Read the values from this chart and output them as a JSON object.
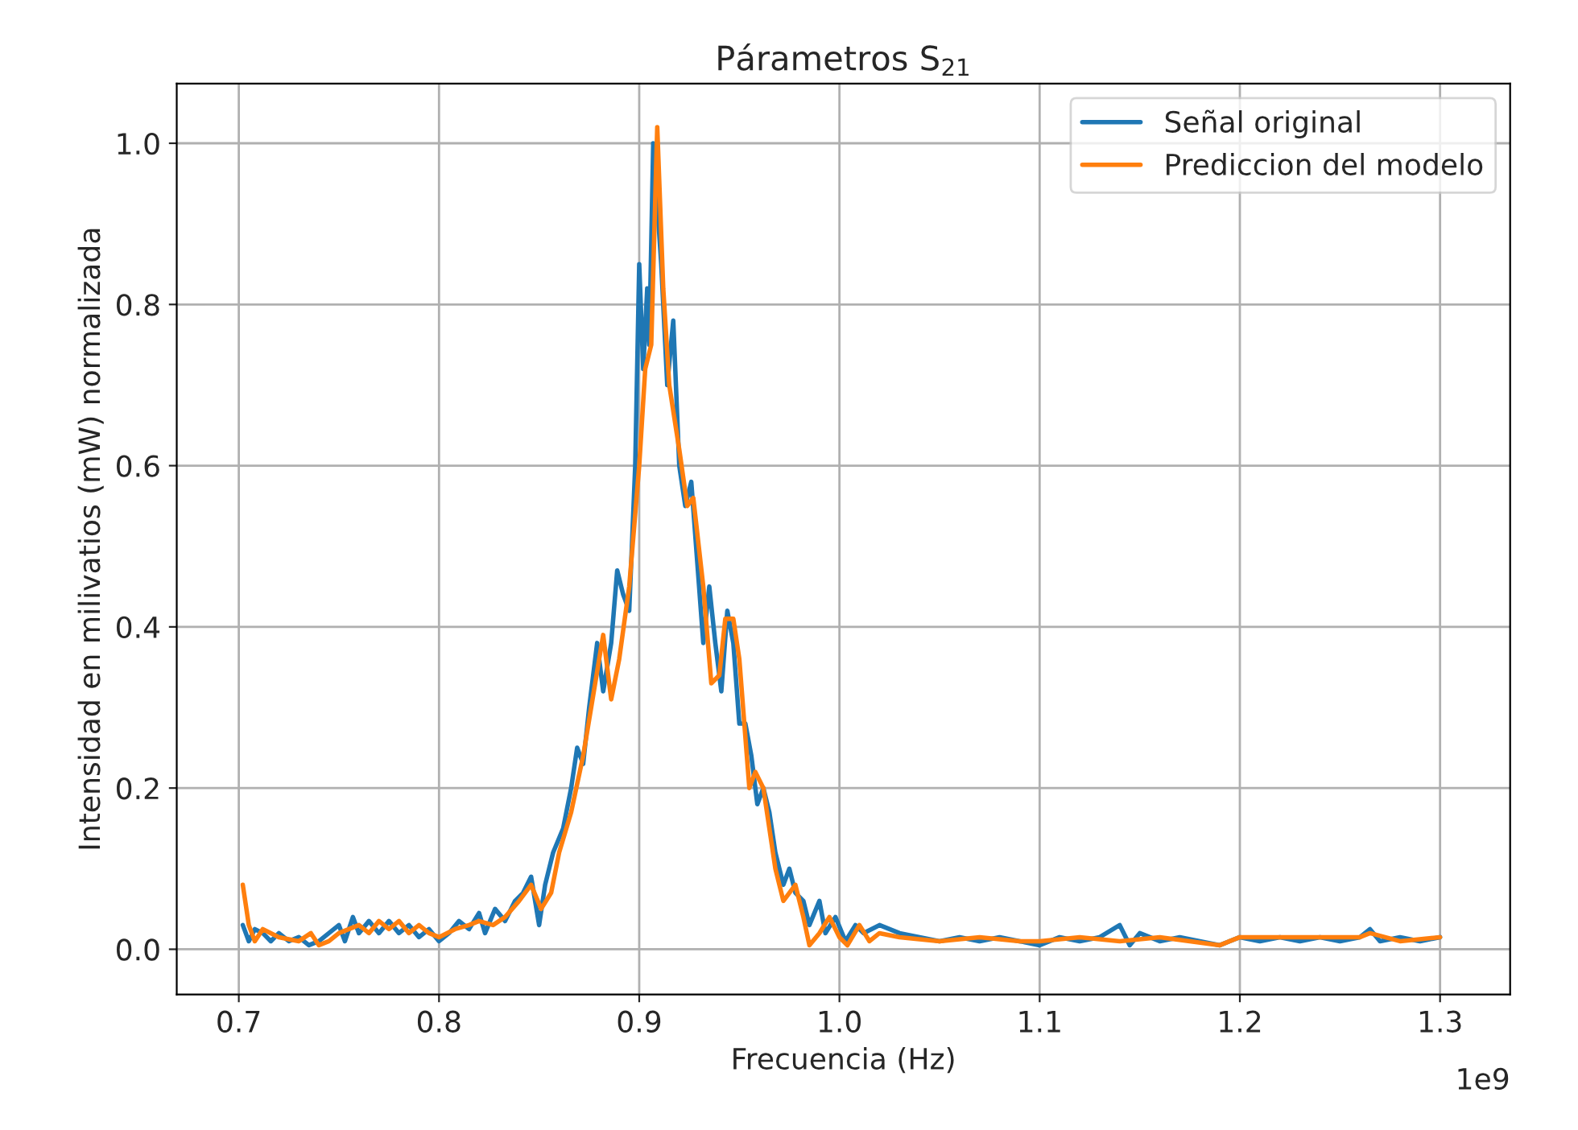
{
  "chart_data": {
    "type": "line",
    "title": "Párametros S$_{21}$",
    "xlabel": "Frecuencia (Hz)",
    "ylabel": "Intensidad en milivatios (mW) normalizada",
    "annotations": [
      "1e9"
    ],
    "xlim": [
      0.669,
      1.335
    ],
    "xticks": [
      0.7,
      0.8,
      0.9,
      {
        "value": 1.0,
        "label": "1.0"
      },
      1.1,
      1.2,
      1.3
    ],
    "ylim": [
      -0.056,
      1.074
    ],
    "yticks": [
      {
        "value": 0.0,
        "label": "0.0"
      },
      0.2,
      0.4,
      0.6,
      0.8,
      {
        "value": 1.0,
        "label": "1.0"
      }
    ],
    "grid": true,
    "legend": "top right",
    "line_style": "solid",
    "marker": "none",
    "series": [
      {
        "name": "Señal original",
        "color": "#1f77b4",
        "x": [
          0.702,
          0.705,
          0.708,
          0.712,
          0.716,
          0.72,
          0.725,
          0.73,
          0.735,
          0.74,
          0.745,
          0.75,
          0.753,
          0.757,
          0.76,
          0.765,
          0.77,
          0.775,
          0.78,
          0.785,
          0.79,
          0.795,
          0.8,
          0.805,
          0.81,
          0.815,
          0.82,
          0.823,
          0.828,
          0.833,
          0.838,
          0.842,
          0.846,
          0.85,
          0.853,
          0.857,
          0.862,
          0.866,
          0.869,
          0.872,
          0.875,
          0.879,
          0.882,
          0.886,
          0.889,
          0.892,
          0.895,
          0.898,
          0.9,
          0.902,
          0.904,
          0.905,
          0.907,
          0.911,
          0.914,
          0.917,
          0.92,
          0.923,
          0.926,
          0.929,
          0.932,
          0.935,
          0.938,
          0.941,
          0.944,
          0.947,
          0.95,
          0.953,
          0.956,
          0.959,
          0.962,
          0.965,
          0.968,
          0.972,
          0.975,
          0.978,
          0.982,
          0.985,
          0.99,
          0.993,
          0.998,
          1.003,
          1.008,
          1.012,
          1.02,
          1.03,
          1.04,
          1.05,
          1.06,
          1.07,
          1.08,
          1.09,
          1.1,
          1.11,
          1.12,
          1.13,
          1.14,
          1.145,
          1.15,
          1.16,
          1.17,
          1.18,
          1.19,
          1.2,
          1.21,
          1.22,
          1.23,
          1.24,
          1.25,
          1.26,
          1.265,
          1.27,
          1.28,
          1.29,
          1.3
        ],
        "values": [
          0.03,
          0.01,
          0.025,
          0.02,
          0.01,
          0.02,
          0.01,
          0.015,
          0.005,
          0.01,
          0.02,
          0.03,
          0.01,
          0.04,
          0.02,
          0.035,
          0.02,
          0.035,
          0.02,
          0.03,
          0.015,
          0.025,
          0.01,
          0.02,
          0.035,
          0.025,
          0.045,
          0.02,
          0.05,
          0.035,
          0.06,
          0.07,
          0.09,
          0.03,
          0.08,
          0.12,
          0.15,
          0.2,
          0.25,
          0.23,
          0.3,
          0.38,
          0.32,
          0.38,
          0.47,
          0.44,
          0.42,
          0.6,
          0.85,
          0.72,
          0.82,
          0.75,
          1.0,
          0.85,
          0.7,
          0.78,
          0.6,
          0.55,
          0.58,
          0.48,
          0.38,
          0.45,
          0.38,
          0.32,
          0.42,
          0.38,
          0.28,
          0.28,
          0.24,
          0.18,
          0.2,
          0.17,
          0.12,
          0.08,
          0.1,
          0.07,
          0.06,
          0.03,
          0.06,
          0.02,
          0.04,
          0.01,
          0.03,
          0.02,
          0.03,
          0.02,
          0.015,
          0.01,
          0.015,
          0.01,
          0.015,
          0.01,
          0.005,
          0.015,
          0.01,
          0.015,
          0.03,
          0.005,
          0.02,
          0.01,
          0.015,
          0.01,
          0.005,
          0.015,
          0.01,
          0.015,
          0.01,
          0.015,
          0.01,
          0.015,
          0.025,
          0.01,
          0.015,
          0.01,
          0.015
        ]
      },
      {
        "name": "Prediccion del modelo",
        "color": "#ff7f0e",
        "x": [
          0.702,
          0.705,
          0.708,
          0.712,
          0.72,
          0.73,
          0.736,
          0.74,
          0.745,
          0.75,
          0.755,
          0.76,
          0.765,
          0.77,
          0.775,
          0.78,
          0.785,
          0.79,
          0.795,
          0.8,
          0.808,
          0.815,
          0.82,
          0.827,
          0.833,
          0.84,
          0.846,
          0.851,
          0.856,
          0.86,
          0.866,
          0.872,
          0.876,
          0.882,
          0.886,
          0.89,
          0.895,
          0.9,
          0.903,
          0.906,
          0.909,
          0.912,
          0.915,
          0.92,
          0.924,
          0.927,
          0.932,
          0.936,
          0.94,
          0.943,
          0.947,
          0.95,
          0.955,
          0.958,
          0.962,
          0.968,
          0.972,
          0.978,
          0.982,
          0.985,
          0.99,
          0.995,
          1.0,
          1.004,
          1.01,
          1.015,
          1.02,
          1.03,
          1.05,
          1.07,
          1.09,
          1.1,
          1.12,
          1.14,
          1.16,
          1.19,
          1.2,
          1.23,
          1.26,
          1.265,
          1.28,
          1.3
        ],
        "values": [
          0.08,
          0.03,
          0.01,
          0.025,
          0.015,
          0.01,
          0.02,
          0.005,
          0.01,
          0.02,
          0.025,
          0.03,
          0.02,
          0.035,
          0.025,
          0.035,
          0.02,
          0.03,
          0.02,
          0.015,
          0.025,
          0.03,
          0.035,
          0.03,
          0.04,
          0.06,
          0.08,
          0.05,
          0.07,
          0.12,
          0.17,
          0.24,
          0.3,
          0.39,
          0.31,
          0.36,
          0.45,
          0.6,
          0.72,
          0.75,
          1.02,
          0.82,
          0.7,
          0.62,
          0.55,
          0.56,
          0.45,
          0.33,
          0.34,
          0.41,
          0.41,
          0.36,
          0.2,
          0.22,
          0.2,
          0.1,
          0.06,
          0.08,
          0.04,
          0.005,
          0.02,
          0.04,
          0.015,
          0.005,
          0.03,
          0.01,
          0.02,
          0.015,
          0.01,
          0.015,
          0.01,
          0.01,
          0.015,
          0.01,
          0.015,
          0.005,
          0.015,
          0.015,
          0.015,
          0.02,
          0.01,
          0.015
        ]
      }
    ]
  }
}
